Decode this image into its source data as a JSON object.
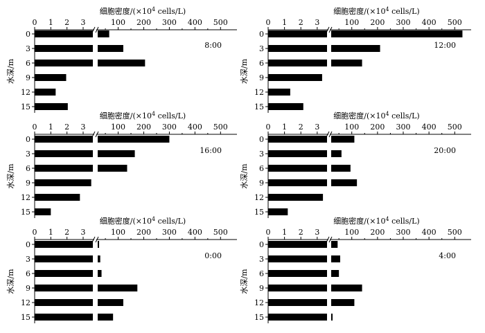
{
  "chart_data": [
    {
      "type": "bar",
      "orientation": "horizontal",
      "panel": "8:00",
      "annotation": "8:00",
      "title": "细胞密度/(×10⁴ cells/L)",
      "ylabel": "水深/m",
      "categories": [
        "0",
        "3",
        "6",
        "9",
        "12",
        "15"
      ],
      "values": [
        65,
        120,
        205,
        1.95,
        1.3,
        2.05
      ],
      "axis": {
        "broken": true,
        "low_ticks": [
          "0",
          "1",
          "2",
          "3"
        ],
        "high_ticks": [
          "100",
          "200",
          "300",
          "400",
          "500"
        ]
      },
      "grid": false
    },
    {
      "type": "bar",
      "orientation": "horizontal",
      "panel": "12:00",
      "annotation": "12:00",
      "title": "细胞密度/(×10⁴ cells/L)",
      "ylabel": "水深/m",
      "categories": [
        "0",
        "3",
        "6",
        "9",
        "12",
        "15"
      ],
      "values": [
        530,
        210,
        140,
        3.3,
        1.35,
        2.15
      ],
      "axis": {
        "broken": true,
        "low_ticks": [
          "0",
          "1",
          "2",
          "3"
        ],
        "high_ticks": [
          "100",
          "200",
          "300",
          "400",
          "500"
        ]
      },
      "grid": false
    },
    {
      "type": "bar",
      "orientation": "horizontal",
      "panel": "16:00",
      "annotation": "16:00",
      "title": "细胞密度/(×10⁴ cells/L)",
      "ylabel": "水深/m",
      "categories": [
        "0",
        "3",
        "6",
        "9",
        "12",
        "15"
      ],
      "values": [
        300,
        165,
        135,
        3.5,
        2.8,
        1.0
      ],
      "axis": {
        "broken": true,
        "low_ticks": [
          "0",
          "1",
          "2",
          "3"
        ],
        "high_ticks": [
          "100",
          "200",
          "300",
          "400",
          "500"
        ]
      },
      "grid": false
    },
    {
      "type": "bar",
      "orientation": "horizontal",
      "panel": "20:00",
      "annotation": "20:00",
      "title": "细胞密度/(×10⁴ cells/L)",
      "ylabel": "水深/m",
      "categories": [
        "0",
        "3",
        "6",
        "9",
        "12",
        "15"
      ],
      "values": [
        110,
        60,
        95,
        120,
        3.35,
        1.2
      ],
      "axis": {
        "broken": true,
        "low_ticks": [
          "0",
          "1",
          "2",
          "3"
        ],
        "high_ticks": [
          "100",
          "200",
          "300",
          "400",
          "500"
        ]
      },
      "grid": false
    },
    {
      "type": "bar",
      "orientation": "horizontal",
      "panel": "0:00",
      "annotation": "0:00",
      "title": "细胞密度/(×10⁴ cells/L)",
      "ylabel": "水深/m",
      "categories": [
        "0",
        "3",
        "6",
        "9",
        "12",
        "15"
      ],
      "values": [
        20,
        30,
        35,
        175,
        120,
        80
      ],
      "axis": {
        "broken": true,
        "low_ticks": [
          "0",
          "1",
          "2",
          "3"
        ],
        "high_ticks": [
          "100",
          "200",
          "300",
          "400",
          "500"
        ]
      },
      "grid": false
    },
    {
      "type": "bar",
      "orientation": "horizontal",
      "panel": "4:00",
      "annotation": "4:00",
      "title": "细胞密度/(×10⁴ cells/L)",
      "ylabel": "水深/m",
      "categories": [
        "0",
        "3",
        "6",
        "9",
        "12",
        "15"
      ],
      "values": [
        45,
        55,
        50,
        140,
        110,
        25
      ],
      "axis": {
        "broken": true,
        "low_ticks": [
          "0",
          "1",
          "2",
          "3"
        ],
        "high_ticks": [
          "100",
          "200",
          "300",
          "400",
          "500"
        ]
      },
      "grid": false
    }
  ]
}
